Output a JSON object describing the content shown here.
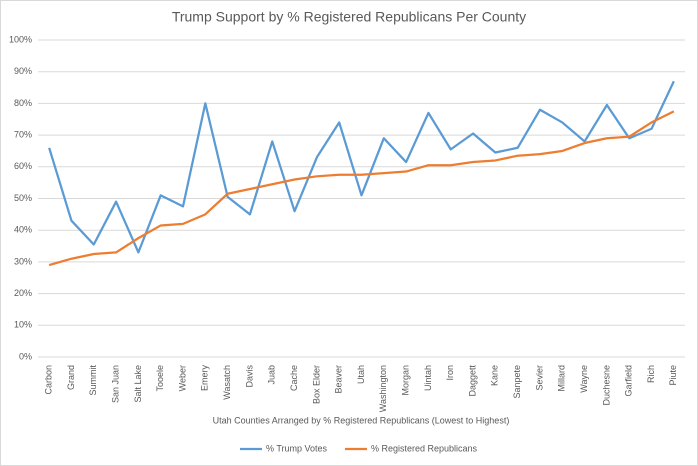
{
  "chart_data": {
    "type": "line",
    "title": "Trump Support by % Registered Republicans Per County",
    "x_label": "Utah Counties Arranged by % Registered Republicans (Lowest to Highest)",
    "categories": [
      "Carbon",
      "Grand",
      "Summit",
      "San Juan",
      "Salt Lake",
      "Tooele",
      "Weber",
      "Emery",
      "Wasatch",
      "Davis",
      "Juab",
      "Cache",
      "Box Elder",
      "Beaver",
      "Utah",
      "Washington",
      "Morgan",
      "Uintah",
      "Iron",
      "Daggett",
      "Kane",
      "Sanpete",
      "Sevier",
      "Millard",
      "Wayne",
      "Duchesne",
      "Garfield",
      "Rich",
      "Piute"
    ],
    "series": [
      {
        "name": "% Trump Votes",
        "color": "#5b9bd5",
        "values": [
          66,
          43,
          35.5,
          49,
          33,
          51,
          47.5,
          80,
          50.5,
          45,
          68,
          46,
          63,
          74,
          51,
          69,
          61.5,
          77,
          65.5,
          70.5,
          64.5,
          66,
          78,
          74,
          68,
          79.5,
          69,
          72,
          87
        ]
      },
      {
        "name": "% Registered Republicans",
        "color": "#ed7d31",
        "values": [
          29,
          31,
          32.5,
          33,
          37.5,
          41.5,
          42,
          45,
          51.5,
          53,
          54.5,
          56,
          57,
          57.5,
          57.5,
          58,
          58.5,
          60.5,
          60.5,
          61.5,
          62,
          63.5,
          64,
          65,
          67.5,
          69,
          69.5,
          74,
          77.5
        ]
      }
    ],
    "ylim": [
      0,
      100
    ],
    "yticks": [
      {
        "value": 0,
        "label": "0%"
      },
      {
        "value": 10,
        "label": "10%"
      },
      {
        "value": 20,
        "label": "20%"
      },
      {
        "value": 30,
        "label": "30%"
      },
      {
        "value": 40,
        "label": "40%"
      },
      {
        "value": 50,
        "label": "50%"
      },
      {
        "value": 60,
        "label": "60%"
      },
      {
        "value": 70,
        "label": "70%"
      },
      {
        "value": 80,
        "label": "80%"
      },
      {
        "value": 90,
        "label": "90%"
      },
      {
        "value": 100,
        "label": "100%"
      }
    ],
    "grid": true,
    "legend": "bottom"
  }
}
